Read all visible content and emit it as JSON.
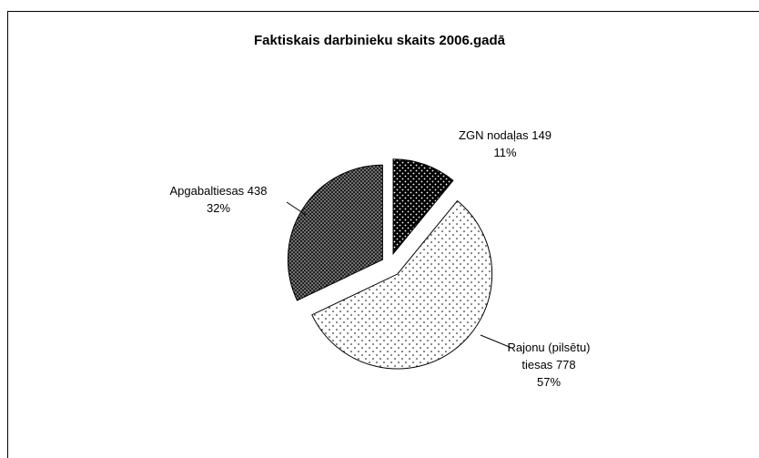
{
  "chart_data": {
    "type": "pie",
    "title": "Faktiskais darbinieku skaits 2006.gadā",
    "categories": [
      "ZGN nodaļas",
      "Rajonu (pilsētu) tiesas",
      "Apgabaltiesas"
    ],
    "values": [
      149,
      778,
      438
    ],
    "percent_labels": [
      "11%",
      "57%",
      "32%"
    ],
    "colors": [
      "url(#p0)",
      "url(#p1)",
      "url(#p2)"
    ]
  }
}
